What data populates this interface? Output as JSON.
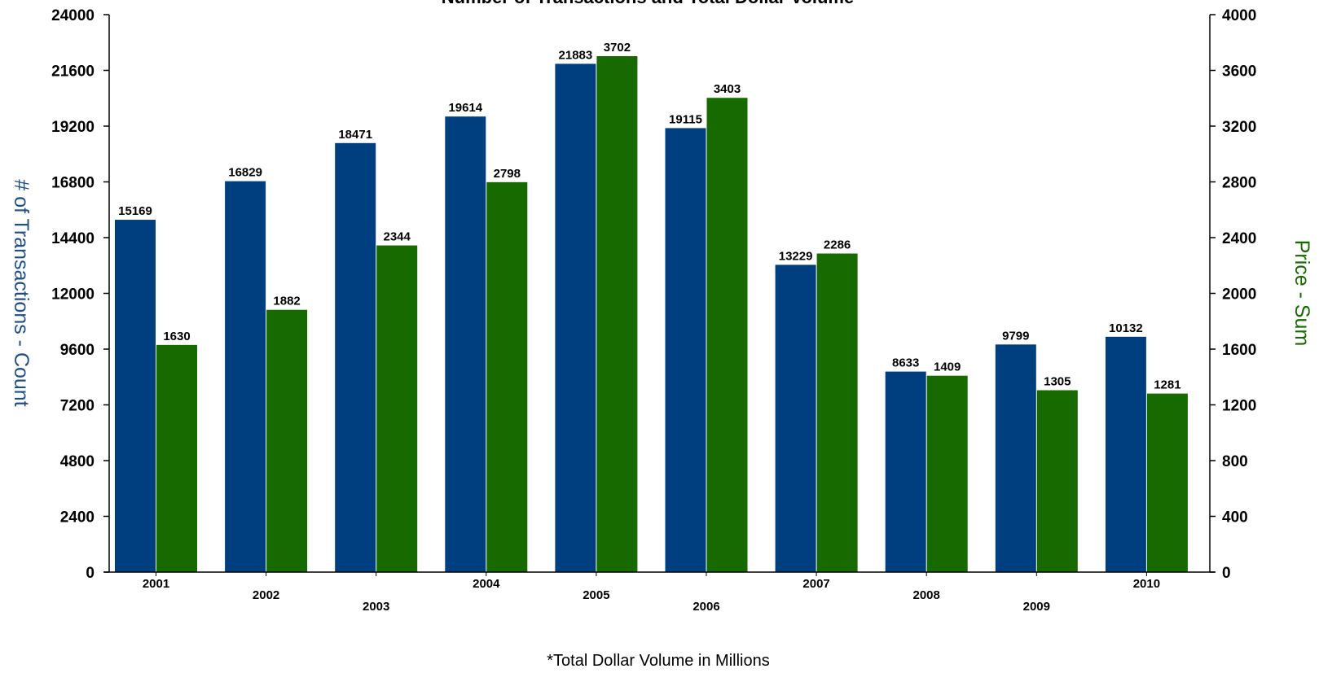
{
  "chart_data": {
    "type": "bar",
    "title": "Number of Transactions and  Total Dollar Volume",
    "categories": [
      "2001",
      "2002",
      "2003",
      "2004",
      "2005",
      "2006",
      "2007",
      "2008",
      "2009",
      "2010"
    ],
    "series": [
      {
        "name": "# of Transactions - Count",
        "axis": "left",
        "color": "#003F7F",
        "values": [
          15169,
          16829,
          18471,
          19614,
          21883,
          19115,
          13229,
          8633,
          9799,
          10132
        ]
      },
      {
        "name": "Price - Sum",
        "axis": "right",
        "color": "#166A00",
        "values": [
          1630,
          1882,
          2344,
          2798,
          3702,
          3403,
          2286,
          1409,
          1305,
          1281
        ]
      }
    ],
    "ylabel": "# of Transactions - Count",
    "ylabel_right": "Price - Sum",
    "ylim": [
      0,
      24000
    ],
    "ylim_right": [
      0,
      4000
    ],
    "yticks": [
      "0",
      "2400",
      "4800",
      "7200",
      "9600",
      "12000",
      "14400",
      "16800",
      "19200",
      "21600",
      "24000"
    ],
    "yticks_right": [
      "0",
      "400",
      "800",
      "1200",
      "1600",
      "2000",
      "2400",
      "2800",
      "3200",
      "3600",
      "4000"
    ],
    "grid": false,
    "legend": "none",
    "footnote": "*Total Dollar Volume in Millions"
  }
}
